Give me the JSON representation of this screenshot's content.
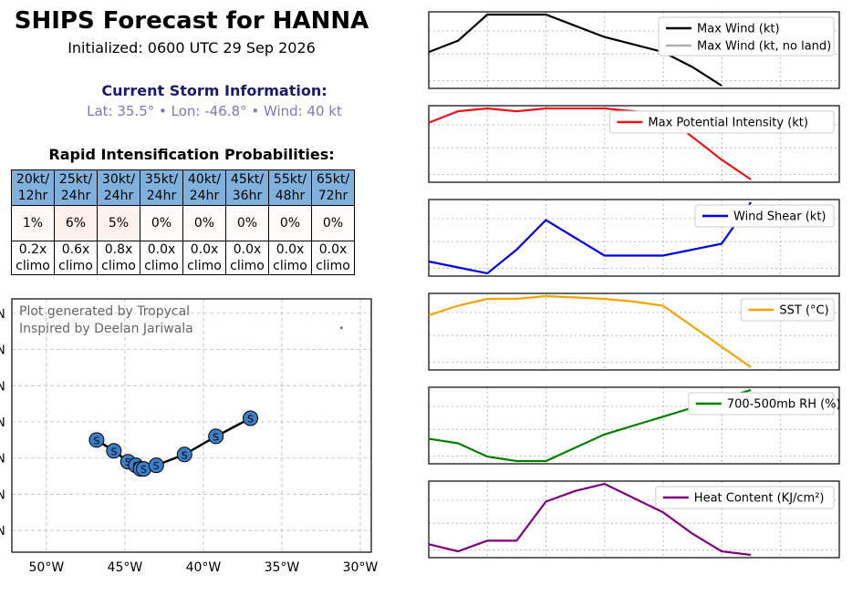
{
  "header": {
    "title": "SHIPS Forecast for HANNA",
    "initialized": "Initialized: 0600 UTC 29 Sep 2026"
  },
  "current_storm": {
    "heading": "Current Storm Information:",
    "info": "Lat: 35.5° • Lon: -46.8° • Wind: 40 kt"
  },
  "rapid_intensification": {
    "heading": "Rapid Intensification Probabilities:",
    "columns": [
      {
        "top": "20kt/",
        "bottom": "12hr",
        "prob": "1%",
        "climo_top": "0.2x",
        "climo_bottom": "climo",
        "tint": "#fff8f6"
      },
      {
        "top": "25kt/",
        "bottom": "24hr",
        "prob": "6%",
        "climo_top": "0.6x",
        "climo_bottom": "climo",
        "tint": "#fff0ec"
      },
      {
        "top": "30kt/",
        "bottom": "24hr",
        "prob": "5%",
        "climo_top": "0.8x",
        "climo_bottom": "climo",
        "tint": "#fff2ee"
      },
      {
        "top": "35kt/",
        "bottom": "24hr",
        "prob": "0%",
        "climo_top": "0.0x",
        "climo_bottom": "climo",
        "tint": "#fffbfa"
      },
      {
        "top": "40kt/",
        "bottom": "24hr",
        "prob": "0%",
        "climo_top": "0.0x",
        "climo_bottom": "climo",
        "tint": "#fffbfa"
      },
      {
        "top": "45kt/",
        "bottom": "36hr",
        "prob": "0%",
        "climo_top": "0.0x",
        "climo_bottom": "climo",
        "tint": "#fffbfa"
      },
      {
        "top": "55kt/",
        "bottom": "48hr",
        "prob": "0%",
        "climo_top": "0.0x",
        "climo_bottom": "climo",
        "tint": "#fffbfa"
      },
      {
        "top": "65kt/",
        "bottom": "72hr",
        "prob": "0%",
        "climo_top": "0.0x",
        "climo_bottom": "climo",
        "tint": "#fffbfa"
      }
    ]
  },
  "map": {
    "credit_line1": "Plot generated by Tropycal",
    "credit_line2": "Inspired by Deelan Jariwala",
    "lon_ticks": [
      "50°W",
      "45°W",
      "40°W",
      "35°W",
      "30°W"
    ],
    "lat_tick_label": "N",
    "track_lon": [
      -46.8,
      -45.7,
      -44.8,
      -44.3,
      -44.0,
      -43.8,
      -43.0,
      -41.2,
      -39.2,
      -37.0
    ],
    "track_lat": [
      35.5,
      35.2,
      34.9,
      34.8,
      34.7,
      34.7,
      34.8,
      35.1,
      35.6,
      36.1
    ],
    "marker_label": "S",
    "marker_color": "#3a7fc8"
  },
  "chart_data": [
    {
      "type": "line",
      "series": [
        {
          "name": "Max Wind (kt)",
          "color": "#000000",
          "values": [
            40,
            43,
            50,
            50,
            50,
            47,
            44,
            42,
            40,
            36,
            31
          ],
          "no_land": "Max Wind (kt, no land)"
        }
      ],
      "legend": "top-right"
    },
    {
      "type": "line",
      "series": [
        {
          "name": "Max Potential Intensity (kt)",
          "color": "#e8141b",
          "values": [
            75,
            79,
            80,
            79,
            80,
            80,
            80,
            79,
            78,
            70,
            62,
            55
          ]
        }
      ],
      "legend": "top-right"
    },
    {
      "type": "line",
      "series": [
        {
          "name": "Wind Shear (kt)",
          "color": "#0000e0",
          "values": [
            21,
            20,
            19,
            23,
            28,
            25,
            22,
            22,
            22,
            23,
            24,
            31
          ]
        }
      ],
      "legend": "top-right"
    },
    {
      "type": "line",
      "series": [
        {
          "name": "SST (°C)",
          "color": "#f5a300",
          "values": [
            22.8,
            23.5,
            24.0,
            24.0,
            24.2,
            24.1,
            24.0,
            23.8,
            23.5,
            22.0,
            20.5,
            19.0
          ]
        }
      ],
      "legend": "top-right"
    },
    {
      "type": "line",
      "series": [
        {
          "name": "700-500mb RH (%)",
          "color": "#008000",
          "values": [
            55,
            54,
            51,
            50,
            50,
            53,
            56,
            58,
            60,
            62,
            64,
            66
          ]
        }
      ],
      "legend": "top-right"
    },
    {
      "type": "line",
      "series": [
        {
          "name": "Heat Content (KJ/cm²)",
          "color": "#800080",
          "values": [
            3,
            1,
            4,
            4,
            15,
            18,
            20,
            16,
            12,
            6,
            1,
            0
          ]
        }
      ],
      "legend": "top-right"
    }
  ]
}
